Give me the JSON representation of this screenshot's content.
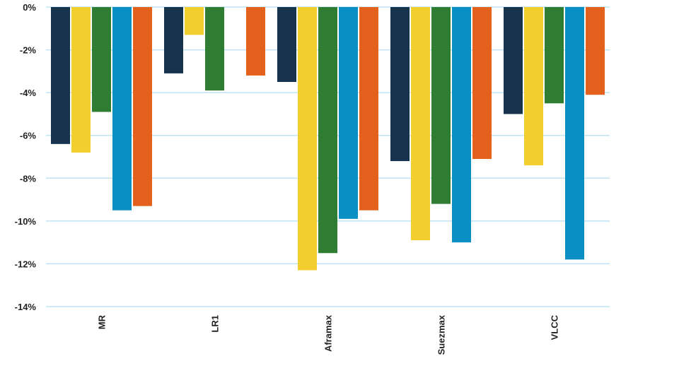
{
  "chart_data": {
    "type": "bar",
    "categories": [
      "MR",
      "LR1",
      "Aframax",
      "Suezmax",
      "VLCC"
    ],
    "series": [
      {
        "values": [
          -6.4,
          -3.1,
          -3.5,
          -7.2,
          -5.0
        ],
        "color": "#17344f"
      },
      {
        "values": [
          -6.8,
          -1.3,
          -12.3,
          -10.9,
          -7.4
        ],
        "color": "#f2cf2e"
      },
      {
        "values": [
          -4.9,
          -3.9,
          -11.5,
          -9.2,
          -4.5
        ],
        "color": "#2e7d32"
      },
      {
        "values": [
          -9.5,
          null,
          -9.9,
          -11.0,
          -11.8
        ],
        "color": "#0a8fc4"
      },
      {
        "values": [
          -9.3,
          -3.2,
          -9.5,
          -7.1,
          -4.1
        ],
        "color": "#e3611c"
      }
    ],
    "yticks": [
      "0%",
      "-2%",
      "-4%",
      "-6%",
      "-8%",
      "-10%",
      "-12%",
      "-14%"
    ],
    "ylim": [
      -14,
      0
    ],
    "grid": true,
    "gridline_color": "#bfe3f5",
    "legend": "none"
  }
}
